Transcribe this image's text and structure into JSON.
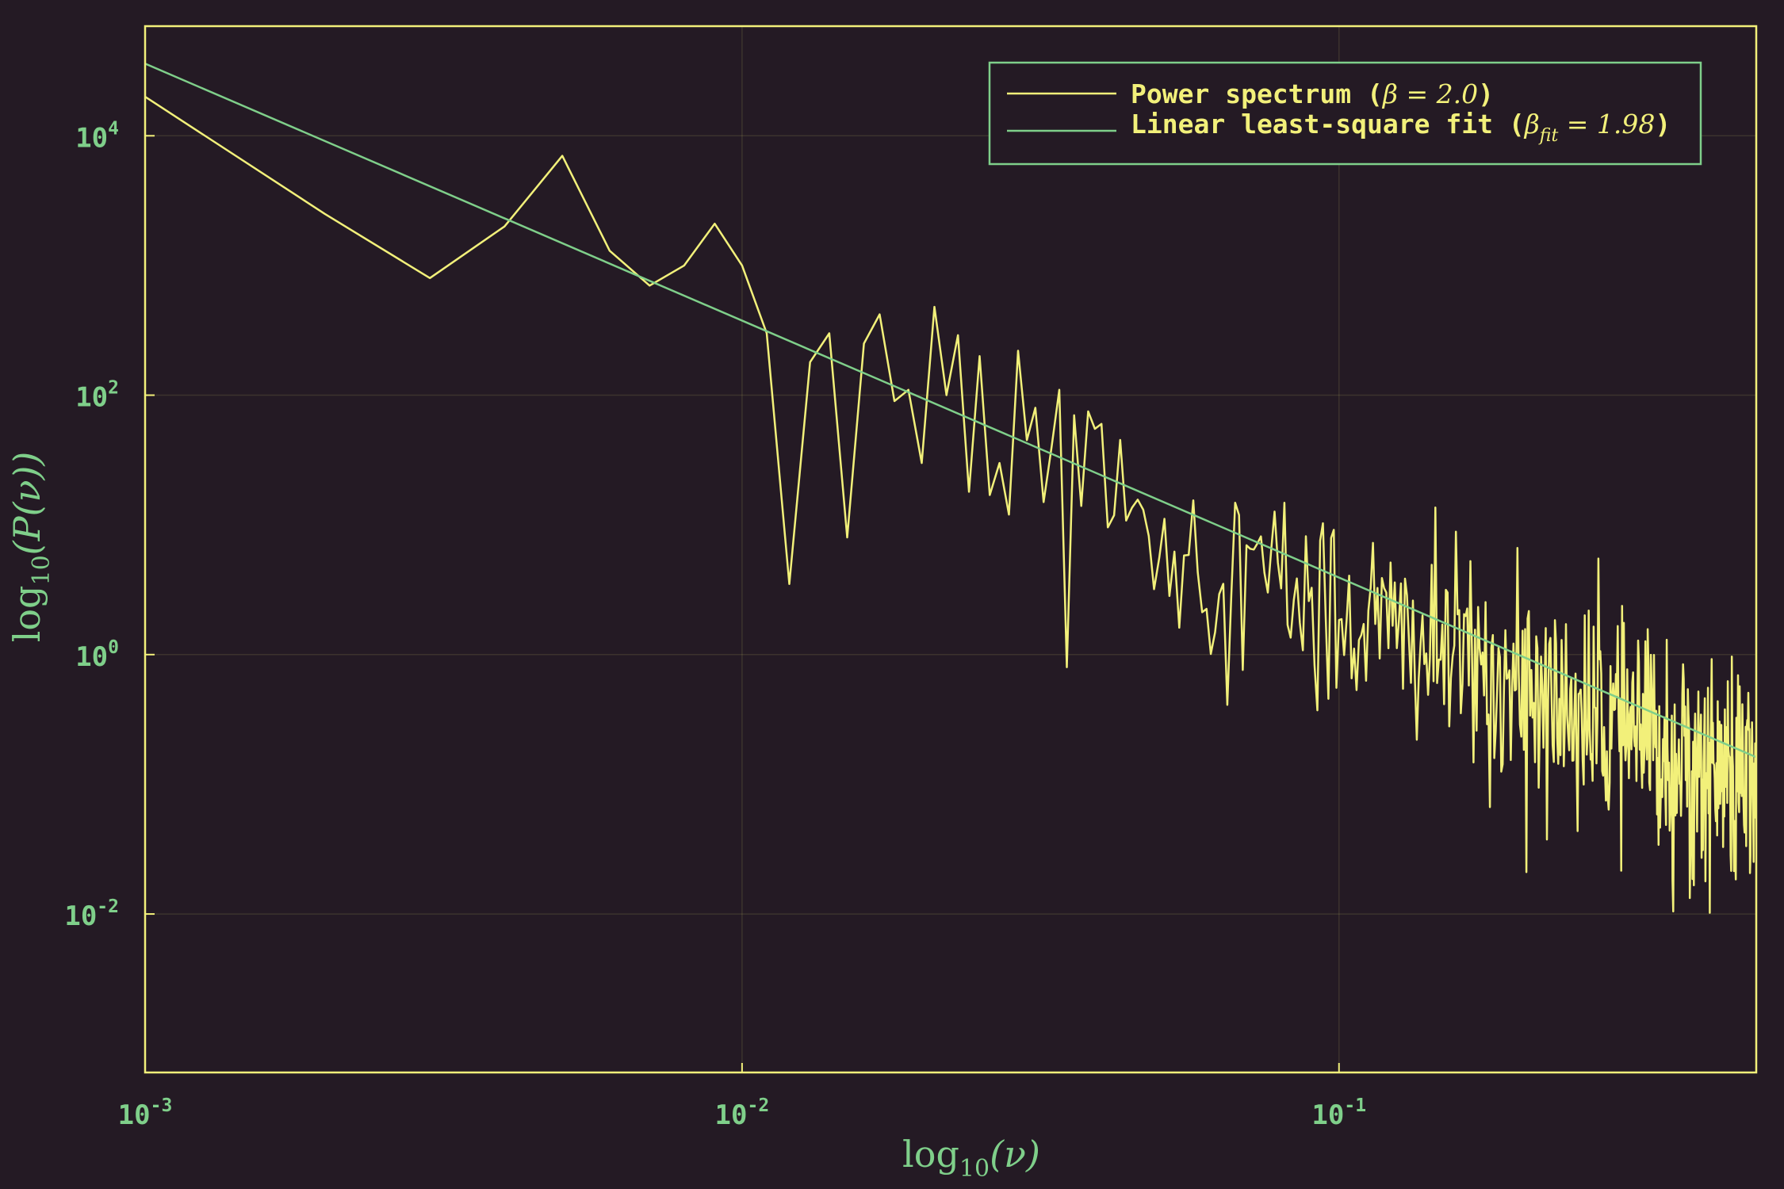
{
  "chart_data": {
    "type": "line",
    "title": "",
    "xlabel_base": "log",
    "xlabel_sub": "10",
    "xlabel_arg": "(ν)",
    "ylabel_base": "log",
    "ylabel_sub": "10",
    "ylabel_arg": "(P(ν))",
    "x_scale": "log",
    "y_scale": "log",
    "xlim": [
      0.001,
      0.5
    ],
    "ylim": [
      0.0006,
      70000
    ],
    "x_ticks": [
      {
        "value": 0.001,
        "base": "10",
        "exp": "-3"
      },
      {
        "value": 0.01,
        "base": "10",
        "exp": "-2"
      },
      {
        "value": 0.1,
        "base": "10",
        "exp": "-1"
      }
    ],
    "y_ticks": [
      {
        "value": 0.01,
        "base": "10",
        "exp": "-2"
      },
      {
        "value": 1,
        "base": "10",
        "exp": "0"
      },
      {
        "value": 100,
        "base": "10",
        "exp": "2"
      },
      {
        "value": 10000,
        "base": "10",
        "exp": "4"
      }
    ],
    "grid": true,
    "legend_position": "top-right",
    "legend": [
      {
        "prefix": "Power spectrum (",
        "math": "β = 2.0",
        "suffix": ")",
        "color": "#f2f07a"
      },
      {
        "prefix": "Linear least-square fit (",
        "math": "β",
        "math_sub": "fit",
        "math_rest": " = 1.98",
        "suffix": ")",
        "color": "#7fcf8a"
      }
    ],
    "series": [
      {
        "color": "#f2f07a",
        "x": [
          0.001,
          0.002,
          0.003,
          0.004,
          0.005,
          0.006,
          0.007,
          0.008,
          0.009,
          0.01,
          0.011,
          0.012,
          0.013,
          0.014,
          0.015,
          0.016,
          0.017,
          0.018,
          0.019,
          0.02,
          0.021,
          0.022,
          0.023,
          0.024,
          0.025,
          0.026,
          0.027,
          0.028,
          0.029,
          0.03,
          0.031,
          0.032,
          0.033,
          0.034,
          0.035,
          0.036,
          0.037,
          0.038,
          0.039,
          0.04
        ],
        "y": [
          20000,
          2500,
          800,
          2000,
          7000,
          1300,
          700,
          1000,
          2100,
          1000,
          300,
          3.5,
          180,
          300,
          8,
          250,
          420,
          90,
          110,
          30,
          480,
          100,
          290,
          18,
          200,
          17,
          30,
          12,
          220,
          45,
          80,
          15,
          40,
          110,
          0.8,
          70,
          14,
          75,
          55,
          60
        ]
      },
      {
        "color": "#7fcf8a",
        "x": [
          0.001,
          0.5
        ],
        "y": [
          36000,
          0.162
        ]
      }
    ]
  }
}
